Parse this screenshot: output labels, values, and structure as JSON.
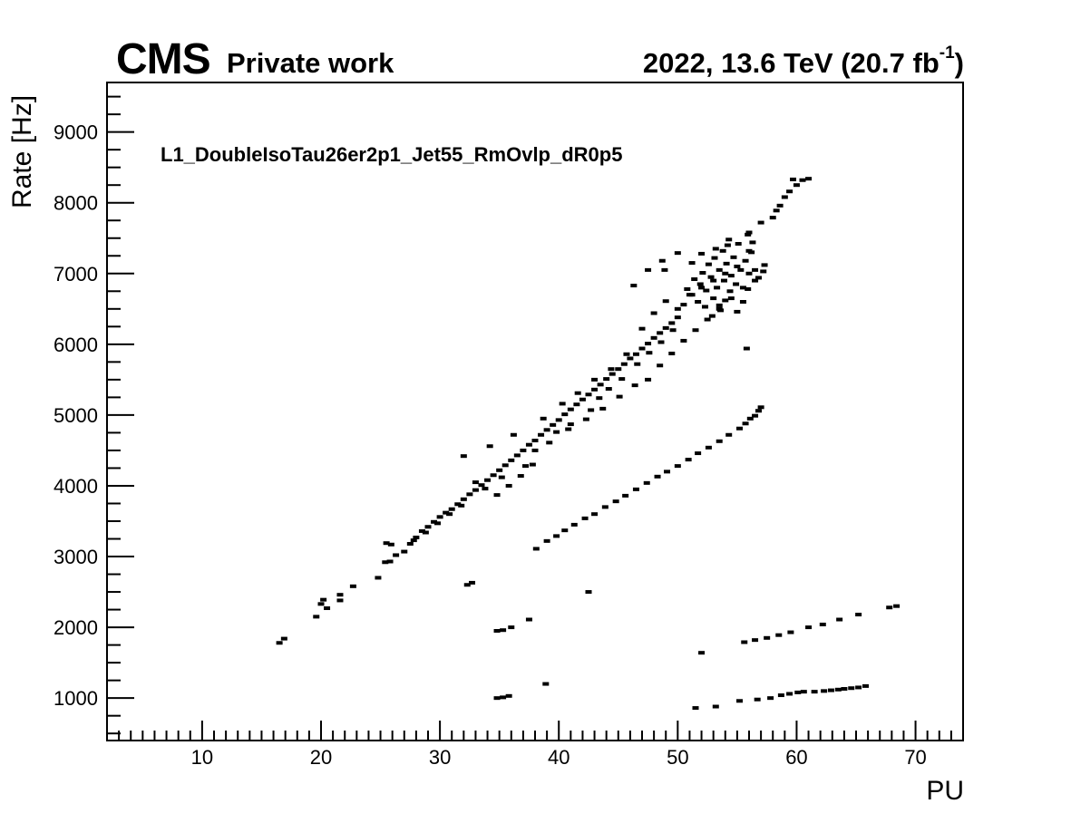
{
  "header": {
    "experiment": "CMS",
    "label": "Private work",
    "lumi_prefix": "2022, 13.6 TeV (20.7 fb",
    "lumi_exp": "-1",
    "lumi_suffix": ")"
  },
  "chart_data": {
    "type": "scatter",
    "title": "L1_DoubleIsoTau26er2p1_Jet55_RmOvlp_dR0p5",
    "xlabel": "PU",
    "ylabel": "Rate [Hz]",
    "xlim": [
      2,
      74
    ],
    "ylim": [
      400,
      9700
    ],
    "xticks": [
      10,
      20,
      30,
      40,
      50,
      60,
      70
    ],
    "yticks": [
      1000,
      2000,
      3000,
      4000,
      5000,
      6000,
      7000,
      8000,
      9000
    ],
    "grid": false,
    "marker_color": "#000000",
    "series": [
      {
        "points": [
          [
            16.5,
            1780
          ],
          [
            16.9,
            1840
          ],
          [
            19.6,
            2150
          ],
          [
            20.0,
            2330
          ],
          [
            20.2,
            2390
          ],
          [
            20.5,
            2270
          ],
          [
            21.6,
            2380
          ],
          [
            21.6,
            2460
          ],
          [
            22.7,
            2580
          ],
          [
            24.8,
            2700
          ],
          [
            25.4,
            2920
          ],
          [
            25.8,
            2930
          ],
          [
            25.5,
            3190
          ],
          [
            25.9,
            3170
          ],
          [
            26.3,
            3020
          ],
          [
            27.0,
            3070
          ],
          [
            27.5,
            3180
          ],
          [
            28.0,
            3270
          ],
          [
            28.5,
            3360
          ],
          [
            29.0,
            3420
          ],
          [
            29.5,
            3490
          ],
          [
            30.0,
            3560
          ],
          [
            30.5,
            3620
          ],
          [
            31.0,
            3670
          ],
          [
            31.5,
            3740
          ],
          [
            32.0,
            3810
          ],
          [
            32.5,
            3880
          ],
          [
            33.0,
            3940
          ],
          [
            33.5,
            4010
          ],
          [
            34.0,
            4080
          ],
          [
            34.5,
            4150
          ],
          [
            35.0,
            4220
          ],
          [
            35.5,
            4290
          ],
          [
            36.0,
            4360
          ],
          [
            36.5,
            4430
          ],
          [
            37.0,
            4500
          ],
          [
            37.5,
            4580
          ],
          [
            38.0,
            4640
          ],
          [
            38.5,
            4720
          ],
          [
            39.0,
            4790
          ],
          [
            39.5,
            4860
          ],
          [
            40.0,
            4930
          ],
          [
            40.5,
            5010
          ],
          [
            41.0,
            5080
          ],
          [
            41.5,
            5150
          ],
          [
            42.0,
            5220
          ],
          [
            42.5,
            5290
          ],
          [
            43.0,
            5360
          ],
          [
            43.5,
            5430
          ],
          [
            44.0,
            5510
          ],
          [
            44.5,
            5580
          ],
          [
            45.0,
            5650
          ],
          [
            45.5,
            5720
          ],
          [
            46.0,
            5800
          ],
          [
            46.5,
            5860
          ],
          [
            47.0,
            5940
          ],
          [
            47.5,
            6010
          ],
          [
            48.0,
            6090
          ],
          [
            48.5,
            6160
          ],
          [
            49.0,
            6230
          ],
          [
            49.5,
            6300
          ],
          [
            50.0,
            6380
          ],
          [
            32.0,
            4420
          ],
          [
            33.0,
            4050
          ],
          [
            34.2,
            4560
          ],
          [
            35.2,
            4120
          ],
          [
            36.2,
            4720
          ],
          [
            37.2,
            4280
          ],
          [
            38.0,
            4500
          ],
          [
            38.7,
            4950
          ],
          [
            39.2,
            4610
          ],
          [
            40.3,
            5160
          ],
          [
            40.8,
            4800
          ],
          [
            41.6,
            5310
          ],
          [
            42.3,
            4940
          ],
          [
            43.0,
            5500
          ],
          [
            43.7,
            5090
          ],
          [
            44.4,
            5650
          ],
          [
            45.1,
            5260
          ],
          [
            45.7,
            5860
          ],
          [
            46.4,
            5420
          ],
          [
            47.0,
            6220
          ],
          [
            47.5,
            5500
          ],
          [
            48.0,
            6440
          ],
          [
            48.5,
            5700
          ],
          [
            49.0,
            6610
          ],
          [
            49.5,
            5870
          ],
          [
            50.0,
            6500
          ],
          [
            50.5,
            6050
          ],
          [
            51.0,
            6700
          ],
          [
            51.5,
            6200
          ],
          [
            52.0,
            6800
          ],
          [
            52.5,
            6350
          ],
          [
            53.0,
            6900
          ],
          [
            53.5,
            6500
          ],
          [
            54.0,
            7000
          ],
          [
            54.5,
            6650
          ],
          [
            55.0,
            7100
          ],
          [
            55.5,
            6800
          ],
          [
            56.0,
            7000
          ],
          [
            56.5,
            7050
          ],
          [
            57.3,
            7120
          ],
          [
            46.3,
            6830
          ],
          [
            47.5,
            7050
          ],
          [
            48.7,
            7180
          ],
          [
            48.9,
            7050
          ],
          [
            50.0,
            7290
          ],
          [
            50.5,
            6560
          ],
          [
            50.8,
            6780
          ],
          [
            51.2,
            6700
          ],
          [
            51.4,
            6920
          ],
          [
            51.7,
            6600
          ],
          [
            51.9,
            6850
          ],
          [
            52.1,
            7010
          ],
          [
            52.3,
            6530
          ],
          [
            52.4,
            6760
          ],
          [
            52.6,
            7130
          ],
          [
            52.8,
            6950
          ],
          [
            53.0,
            6650
          ],
          [
            53.1,
            7220
          ],
          [
            53.3,
            6800
          ],
          [
            53.5,
            7050
          ],
          [
            53.6,
            6480
          ],
          [
            53.8,
            7320
          ],
          [
            53.9,
            6900
          ],
          [
            54.0,
            6620
          ],
          [
            54.1,
            7140
          ],
          [
            54.2,
            7400
          ],
          [
            54.4,
            6750
          ],
          [
            54.5,
            6970
          ],
          [
            54.7,
            7230
          ],
          [
            54.9,
            6850
          ],
          [
            55.1,
            7420
          ],
          [
            55.3,
            7050
          ],
          [
            55.5,
            6600
          ],
          [
            55.7,
            7180
          ],
          [
            55.9,
            6780
          ],
          [
            56.2,
            7300
          ],
          [
            56.5,
            6900
          ],
          [
            52.9,
            6400
          ],
          [
            53.2,
            7350
          ],
          [
            54.3,
            7480
          ],
          [
            55.0,
            6460
          ],
          [
            51.2,
            7150
          ],
          [
            52.0,
            7280
          ],
          [
            53.5,
            6550
          ],
          [
            55.9,
            7550
          ],
          [
            56.3,
            7440
          ],
          [
            56.0,
            7320
          ],
          [
            42.7,
            5070
          ],
          [
            43.4,
            5240
          ],
          [
            44.2,
            5370
          ],
          [
            45.3,
            5510
          ],
          [
            46.6,
            5720
          ],
          [
            47.6,
            5880
          ],
          [
            48.6,
            6030
          ],
          [
            49.6,
            6200
          ],
          [
            39.8,
            4760
          ],
          [
            41.0,
            4870
          ],
          [
            37.8,
            4300
          ],
          [
            36.8,
            4140
          ],
          [
            35.8,
            4000
          ],
          [
            34.8,
            3870
          ],
          [
            33.8,
            3960
          ],
          [
            31.8,
            3720
          ],
          [
            30.8,
            3600
          ],
          [
            29.8,
            3470
          ],
          [
            28.8,
            3340
          ],
          [
            27.8,
            3230
          ],
          [
            58.0,
            7790
          ],
          [
            58.3,
            7890
          ],
          [
            58.6,
            7960
          ],
          [
            59.0,
            8080
          ],
          [
            59.4,
            8160
          ],
          [
            59.7,
            8330
          ],
          [
            60.0,
            8250
          ],
          [
            60.5,
            8320
          ],
          [
            61.0,
            8340
          ],
          [
            57.0,
            7720
          ],
          [
            56.0,
            7580
          ],
          [
            55.8,
            5940
          ],
          [
            57.2,
            7030
          ],
          [
            56.8,
            6940
          ]
        ]
      },
      {
        "points": [
          [
            38.1,
            3110
          ],
          [
            39.0,
            3220
          ],
          [
            39.8,
            3290
          ],
          [
            40.5,
            3370
          ],
          [
            41.3,
            3450
          ],
          [
            42.2,
            3540
          ],
          [
            43.0,
            3600
          ],
          [
            43.9,
            3700
          ],
          [
            44.8,
            3780
          ],
          [
            45.6,
            3860
          ],
          [
            46.5,
            3950
          ],
          [
            47.4,
            4040
          ],
          [
            48.3,
            4130
          ],
          [
            49.1,
            4200
          ],
          [
            50.0,
            4280
          ],
          [
            50.9,
            4370
          ],
          [
            51.7,
            4460
          ],
          [
            52.6,
            4540
          ],
          [
            53.5,
            4630
          ],
          [
            54.3,
            4720
          ],
          [
            55.2,
            4810
          ],
          [
            55.7,
            4880
          ],
          [
            56.1,
            4950
          ],
          [
            56.5,
            4990
          ],
          [
            56.8,
            5060
          ],
          [
            57.0,
            5110
          ]
        ]
      },
      {
        "points": [
          [
            32.3,
            2600
          ],
          [
            32.7,
            2630
          ],
          [
            34.8,
            1950
          ],
          [
            35.3,
            1960
          ],
          [
            36.0,
            2000
          ],
          [
            37.5,
            2110
          ],
          [
            42.5,
            2500
          ],
          [
            52.0,
            1640
          ],
          [
            55.6,
            1790
          ],
          [
            56.5,
            1820
          ],
          [
            57.5,
            1850
          ],
          [
            58.5,
            1890
          ],
          [
            59.5,
            1930
          ],
          [
            61.0,
            2000
          ],
          [
            62.2,
            2040
          ],
          [
            63.6,
            2110
          ],
          [
            65.2,
            2180
          ],
          [
            67.8,
            2280
          ],
          [
            68.4,
            2300
          ]
        ]
      },
      {
        "points": [
          [
            34.8,
            1000
          ],
          [
            35.3,
            1010
          ],
          [
            35.8,
            1030
          ],
          [
            38.9,
            1200
          ],
          [
            51.5,
            860
          ],
          [
            53.2,
            880
          ],
          [
            55.2,
            960
          ],
          [
            56.7,
            980
          ],
          [
            57.8,
            1000
          ],
          [
            58.7,
            1040
          ],
          [
            59.4,
            1060
          ],
          [
            60.1,
            1080
          ],
          [
            60.6,
            1090
          ],
          [
            61.5,
            1090
          ],
          [
            62.3,
            1100
          ],
          [
            62.9,
            1110
          ],
          [
            63.5,
            1120
          ],
          [
            64.0,
            1130
          ],
          [
            64.6,
            1140
          ],
          [
            65.2,
            1150
          ],
          [
            65.8,
            1170
          ]
        ]
      }
    ]
  }
}
